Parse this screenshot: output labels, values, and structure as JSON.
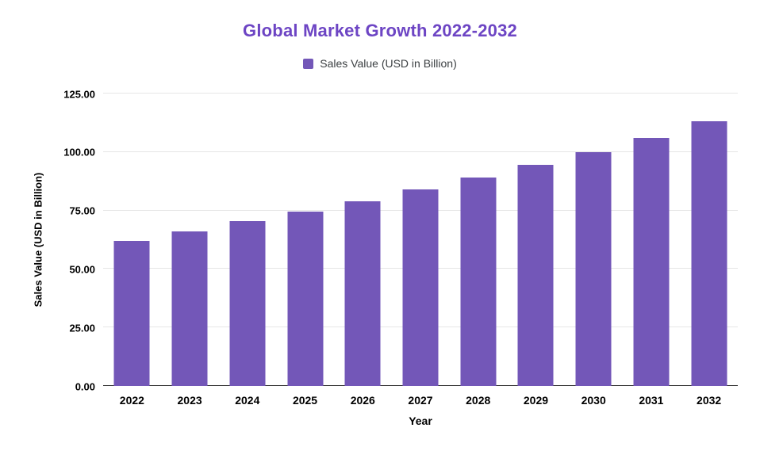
{
  "chart_data": {
    "type": "bar",
    "title": "Global Market Growth 2022-2032",
    "legend_label": "Sales Value (USD in Billion)",
    "xlabel": "Year",
    "ylabel": "Sales Value (USD in Billion)",
    "categories": [
      "2022",
      "2023",
      "2024",
      "2025",
      "2026",
      "2027",
      "2028",
      "2029",
      "2030",
      "2031",
      "2032"
    ],
    "values": [
      62,
      66,
      70.5,
      74.5,
      79,
      84,
      89,
      94.5,
      100,
      106,
      113
    ],
    "ylim": [
      0,
      125
    ],
    "yticks": [
      "0.00",
      "25.00",
      "50.00",
      "75.00",
      "100.00",
      "125.00"
    ],
    "grid": "on",
    "legend_position": "top-center",
    "colors": {
      "bar": "#7357b8",
      "title": "#6d45c4",
      "grid": "#e6e6e6",
      "baseline": "#333333",
      "background": "#ffffff"
    }
  }
}
